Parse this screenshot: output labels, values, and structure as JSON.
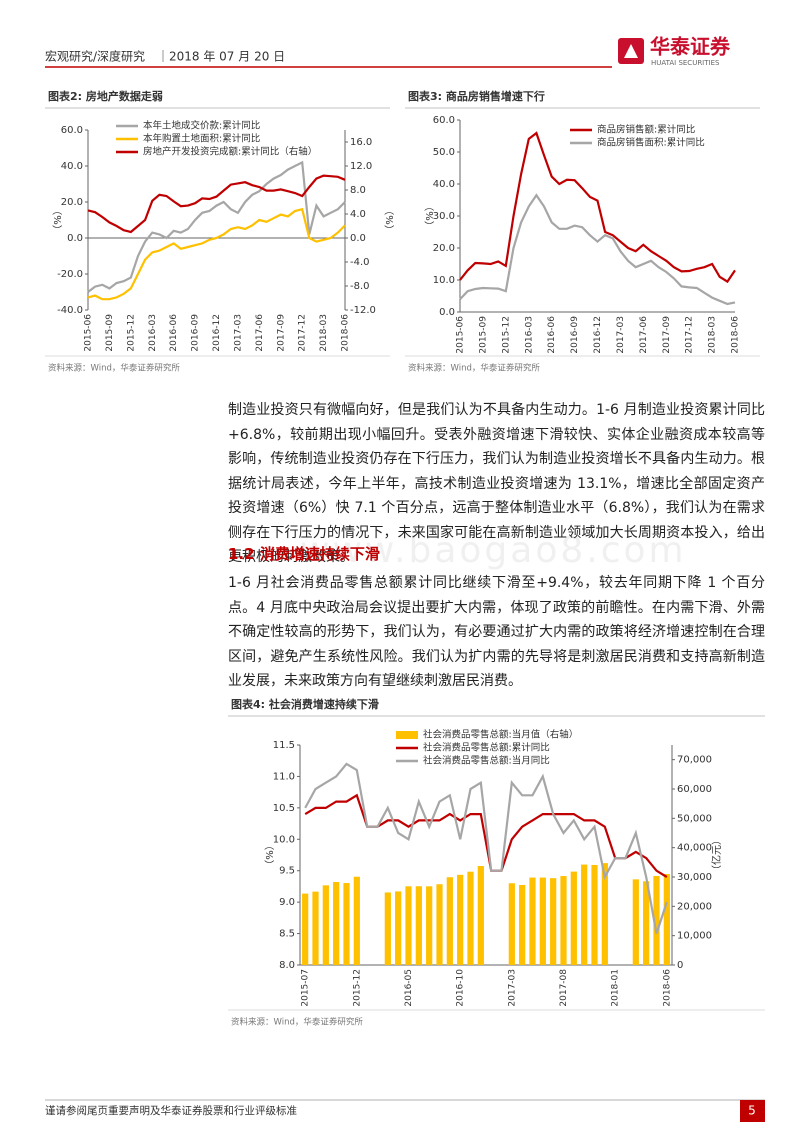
{
  "header": {
    "section": "宏观研究/深度研究",
    "date": "｜2018 年 07 月 20 日",
    "logo": "华泰证券",
    "logo_en": "HUATAI SECURITIES"
  },
  "chart_data": [
    {
      "type": "line",
      "title": "图表2:  房地产数据走弱",
      "source": "资料来源：Wind，华泰证券研究所",
      "ylabel": "（%）",
      "y2label": "（%）",
      "legend": "upper left",
      "categories": [
        "2015-06",
        null,
        null,
        "2015-09",
        null,
        null,
        "2015-12",
        null,
        null,
        "2016-03",
        null,
        null,
        "2016-06",
        null,
        null,
        "2016-09",
        null,
        null,
        "2016-12",
        null,
        null,
        "2017-03",
        null,
        null,
        "2017-06",
        null,
        null,
        "2017-09",
        null,
        null,
        "2017-12",
        null,
        null,
        "2018-03",
        null,
        null,
        "2018-06"
      ],
      "ylim": [
        -40,
        60
      ],
      "yticks": [
        {
          "value": -40,
          "label": "-40.0"
        },
        {
          "value": -20,
          "label": "-20.0"
        },
        {
          "value": 0,
          "label": "0.0"
        },
        {
          "value": 20,
          "label": "20.0"
        },
        {
          "value": 40,
          "label": "40.0"
        },
        {
          "value": 60,
          "label": "60.0"
        }
      ],
      "y2lim": [
        -12,
        18
      ],
      "y2ticks": [
        {
          "value": -12,
          "label": "-12.0"
        },
        {
          "value": -8,
          "label": "-8.0"
        },
        {
          "value": -4,
          "label": "-4.0"
        },
        {
          "value": 0,
          "label": "0.0"
        },
        {
          "value": 4,
          "label": "4.0"
        },
        {
          "value": 8,
          "label": "8.0"
        },
        {
          "value": 12,
          "label": "12.0"
        },
        {
          "value": 16,
          "label": "16.0"
        }
      ],
      "series": [
        {
          "name": "本年土地成交价款:累计同比",
          "color": "#a6a6a6",
          "values": [
            -30,
            -27,
            -26,
            -28,
            -25,
            -24,
            -22,
            -10,
            -2,
            3,
            2,
            0,
            4,
            3,
            5,
            10,
            14,
            15,
            18,
            20,
            16,
            14,
            20,
            24,
            26,
            30,
            33,
            35,
            38,
            40,
            42,
            2,
            18,
            12,
            14,
            16,
            20
          ]
        },
        {
          "name": "本年购置土地面积:累计同比",
          "color": "#ffc000",
          "values": [
            -33,
            -32,
            -34,
            -34,
            -33,
            -31,
            -28,
            -20,
            -12,
            -8,
            -7,
            -5,
            -3,
            -6,
            -5,
            -4,
            -3,
            -1,
            0,
            2,
            5,
            6,
            5,
            7,
            10,
            9,
            11,
            13,
            12,
            15,
            16,
            0,
            -2,
            -1,
            0,
            3,
            7
          ]
        },
        {
          "name": "房地产开发投资完成额:累计同比（右轴）",
          "color": "#c00000",
          "axis": "y2",
          "values": [
            4.6,
            4.3,
            3.5,
            2.6,
            2.0,
            1.3,
            1.0,
            2.0,
            3.0,
            6.2,
            7.2,
            7.0,
            6.1,
            5.3,
            5.4,
            5.8,
            6.6,
            6.5,
            6.9,
            7.9,
            8.9,
            9.1,
            9.3,
            8.8,
            8.5,
            7.9,
            7.9,
            8.1,
            7.8,
            7.5,
            7.0,
            8.5,
            9.9,
            10.4,
            10.3,
            10.2,
            9.7
          ]
        }
      ]
    },
    {
      "type": "line",
      "title": "图表3:  商品房销售增速下行",
      "source": "资料来源：Wind，华泰证券研究所",
      "ylabel": "（%）",
      "legend": "upper right",
      "categories": [
        "2015-06",
        null,
        null,
        "2015-09",
        null,
        null,
        "2015-12",
        null,
        null,
        "2016-03",
        null,
        null,
        "2016-06",
        null,
        null,
        "2016-09",
        null,
        null,
        "2016-12",
        null,
        null,
        "2017-03",
        null,
        null,
        "2017-06",
        null,
        null,
        "2017-09",
        null,
        null,
        "2017-12",
        null,
        null,
        "2018-03",
        null,
        null,
        "2018-06"
      ],
      "ylim": [
        0,
        60
      ],
      "yticks": [
        {
          "value": 0,
          "label": "0.0"
        },
        {
          "value": 10,
          "label": "10.0"
        },
        {
          "value": 20,
          "label": "20.0"
        },
        {
          "value": 30,
          "label": "30.0"
        },
        {
          "value": 40,
          "label": "40.0"
        },
        {
          "value": 50,
          "label": "50.0"
        },
        {
          "value": 60,
          "label": "60.0"
        }
      ],
      "series": [
        {
          "name": "商品房销售额:累计同比",
          "color": "#c00000",
          "values": [
            10,
            13,
            15.3,
            15.2,
            15,
            15.8,
            14.4,
            30,
            43.1,
            54.1,
            55.9,
            49,
            42.3,
            40,
            41.3,
            41.2,
            38.7,
            36,
            34.8,
            25,
            24,
            22,
            20,
            19,
            21,
            19,
            17.5,
            16,
            14,
            12.7,
            12.8,
            13.5,
            14,
            15,
            11,
            9.5,
            13
          ]
        },
        {
          "name": "商品房销售面积:累计同比",
          "color": "#a6a6a6",
          "values": [
            4,
            6.5,
            7.2,
            7.5,
            7.4,
            7.3,
            6.5,
            20,
            28,
            33,
            36.5,
            33,
            28,
            26,
            26,
            27,
            26.5,
            24,
            22,
            24,
            23,
            19,
            16,
            14,
            15,
            16,
            14,
            12.5,
            10.5,
            8,
            7.7,
            7.5,
            6,
            4.5,
            3.5,
            2.5,
            3
          ]
        }
      ]
    },
    {
      "type": "combo",
      "title": "图表4:  社会消费增速持续下滑",
      "source": "资料来源：Wind，华泰证券研究所",
      "ylabel": "（%）",
      "y2label": "（亿元）",
      "legend": "upper center",
      "categories": [
        "2015-07",
        null,
        null,
        null,
        null,
        "2015-12",
        null,
        null,
        null,
        null,
        "2016-05",
        null,
        null,
        null,
        null,
        "2016-10",
        null,
        null,
        null,
        null,
        "2017-03",
        null,
        null,
        null,
        null,
        "2017-08",
        null,
        null,
        null,
        null,
        "2018-01",
        null,
        null,
        null,
        null,
        "2018-06"
      ],
      "ylim": [
        8,
        11.5
      ],
      "yticks": [
        {
          "value": 8,
          "label": "8.0"
        },
        8.5,
        {
          "value": 9,
          "label": "9.0"
        },
        9.5,
        {
          "value": 10,
          "label": "10.0"
        },
        10.5,
        {
          "value": 11,
          "label": "11.0"
        },
        11.5
      ],
      "y2lim": [
        0,
        75000
      ],
      "y2ticks": [
        0,
        {
          "value": 10000,
          "label": "10,000"
        },
        {
          "value": 20000,
          "label": "20,000"
        },
        {
          "value": 30000,
          "label": "30,000"
        },
        {
          "value": 40000,
          "label": "40,000"
        },
        {
          "value": 50000,
          "label": "50,000"
        },
        {
          "value": 60000,
          "label": "60,000"
        },
        {
          "value": 70000,
          "label": "70,000"
        }
      ],
      "series": [
        {
          "name": "社会消费品零售总额:当月值（右轴）",
          "type": "bar",
          "color": "#ffc000",
          "axis": "y2",
          "values": [
            24339,
            25008,
            27159,
            28287,
            27937,
            30093,
            null,
            null,
            24733,
            25088,
            26829,
            26857,
            26827,
            27539,
            29916,
            30734,
            31809,
            33734,
            null,
            null,
            27864,
            27278,
            29805,
            29808,
            29610,
            30330,
            31835,
            34240,
            34108,
            34734,
            null,
            null,
            29194,
            28542,
            30359,
            31000
          ]
        },
        {
          "name": "社会消费品零售总额:累计同比",
          "type": "line",
          "color": "#c00000",
          "values": [
            10.4,
            10.5,
            10.5,
            10.6,
            10.6,
            10.7,
            10.2,
            10.2,
            10.3,
            10.3,
            10.2,
            10.3,
            10.3,
            10.3,
            10.4,
            10.3,
            10.4,
            10.4,
            9.5,
            9.5,
            10.0,
            10.2,
            10.3,
            10.4,
            10.4,
            10.4,
            10.4,
            10.3,
            10.3,
            10.2,
            9.7,
            9.7,
            9.8,
            9.7,
            9.5,
            9.4
          ]
        },
        {
          "name": "社会消费品零售总额:当月同比",
          "type": "line",
          "color": "#a6a6a6",
          "values": [
            10.5,
            10.8,
            10.9,
            11.0,
            11.2,
            11.1,
            10.2,
            10.2,
            10.5,
            10.1,
            10.0,
            10.6,
            10.2,
            10.6,
            10.7,
            10.0,
            10.8,
            10.9,
            9.5,
            9.5,
            10.9,
            10.7,
            10.7,
            11.0,
            10.4,
            10.1,
            10.3,
            10.0,
            10.2,
            9.4,
            9.7,
            9.7,
            10.1,
            9.4,
            8.5,
            9.0
          ]
        }
      ]
    }
  ],
  "body": {
    "paragraph1": "制造业投资只有微幅向好，但是我们认为不具备内生动力。1-6 月制造业投资累计同比+6.8%，较前期出现小幅回升。受表外融资增速下滑较快、实体企业融资成本较高等影响，传统制造业投资仍存在下行压力，我们认为制造业投资增长不具备内生动力。根据统计局表述，今年上半年，高技术制造业投资增速为 13.1%，增速比全部固定资产投资增速（6%）快 7.1 个百分点，远高于整体制造业水平（6.8%），我们认为在需求侧存在下行压力的情况下，未来国家可能在高新制造业领域加大长周期资本投入，给出更积极的刺激政策。",
    "section_number": "1.2",
    "section_title": "消费增速持续下滑",
    "watermark": "www.baogao8.com",
    "paragraph2": "1-6 月社会消费品零售总额累计同比继续下滑至+9.4%，较去年同期下降 1 个百分点。4 月底中央政治局会议提出要扩大内需，体现了政策的前瞻性。在内需下滑、外需不确定性较高的形势下，我们认为，有必要通过扩大内需的政策将经济增速控制在合理区间，避免产生系统性风险。我们认为扩内需的先导将是刺激居民消费和支持高新制造业发展，未来政策方向有望继续刺激居民消费。"
  },
  "footer": {
    "disclaimer": "谨请参阅尾页重要声明及华泰证券股票和行业评级标准",
    "page": "5"
  }
}
